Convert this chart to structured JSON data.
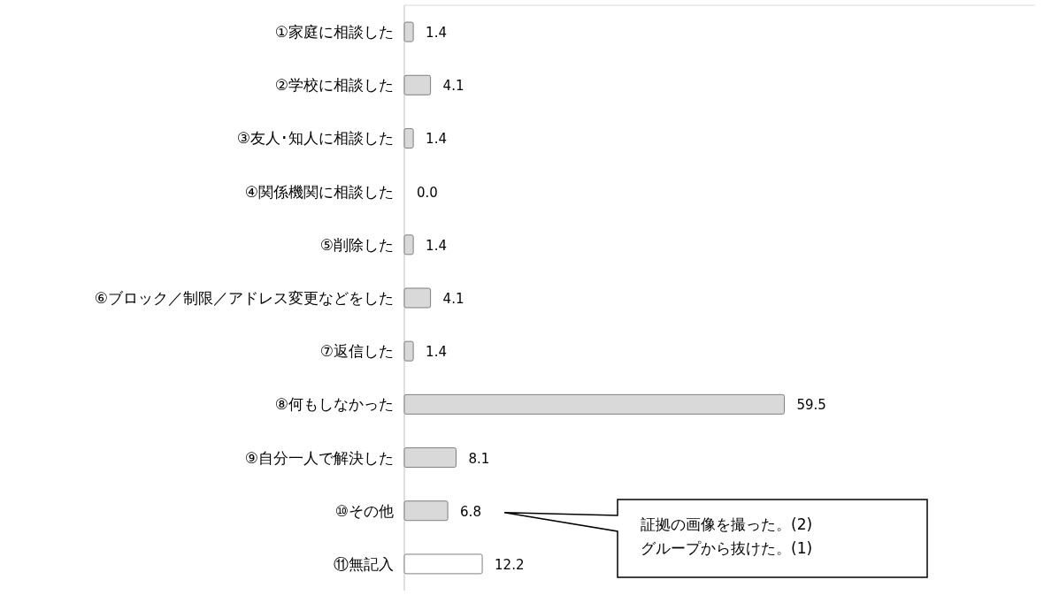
{
  "chart_data": {
    "type": "bar",
    "orientation": "horizontal",
    "categories": [
      "①家庭に相談した",
      "②学校に相談した",
      "③友人･知人に相談した",
      "④関係機関に相談した",
      "⑤削除した",
      "⑥ブロック／制限／アドレス変更などをした",
      "⑦返信した",
      "⑧何もしなかった",
      "⑨自分一人で解決した",
      "⑩その他",
      "⑪無記入"
    ],
    "values": [
      1.4,
      4.1,
      1.4,
      0.0,
      1.4,
      4.1,
      1.4,
      59.5,
      8.1,
      6.8,
      12.2
    ],
    "value_labels": [
      "1.4",
      "4.1",
      "1.4",
      "0.0",
      "1.4",
      "4.1",
      "1.4",
      "59.5",
      "8.1",
      "6.8",
      "12.2"
    ],
    "colors": [
      "#d9d9d9",
      "#d9d9d9",
      "#d9d9d9",
      "#d9d9d9",
      "#d9d9d9",
      "#d9d9d9",
      "#d9d9d9",
      "#d9d9d9",
      "#d9d9d9",
      "#d9d9d9",
      "#ffffff"
    ],
    "annotations": [
      "証拠の画像を撮った。(2)\nグループから抜けた。(1)"
    ]
  }
}
